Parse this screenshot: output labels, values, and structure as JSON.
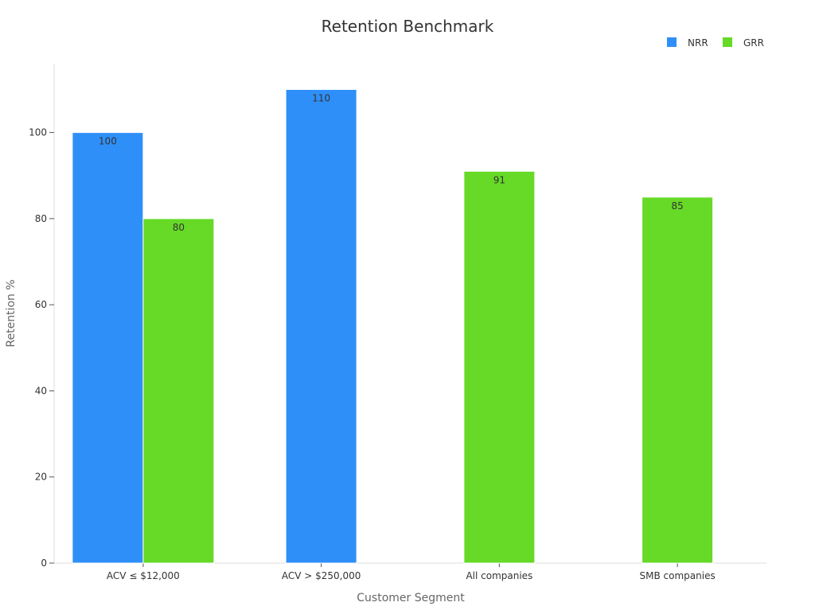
{
  "chart_data": {
    "type": "bar",
    "title": "Retention Benchmark",
    "xlabel": "Customer Segment",
    "ylabel": "Retention %",
    "categories": [
      "ACV ≤ $12,000",
      "ACV > $250,000",
      "All companies",
      "SMB companies"
    ],
    "series": [
      {
        "name": "NRR",
        "color": "#2f8ff8",
        "values": [
          100,
          110,
          null,
          null
        ]
      },
      {
        "name": "GRR",
        "color": "#66da26",
        "values": [
          80,
          null,
          91,
          85
        ]
      }
    ],
    "ylim": [
      0,
      116
    ],
    "yticks": [
      0,
      20,
      40,
      60,
      80,
      100
    ],
    "grid": false,
    "legend": "top-right",
    "data_labels": true
  }
}
